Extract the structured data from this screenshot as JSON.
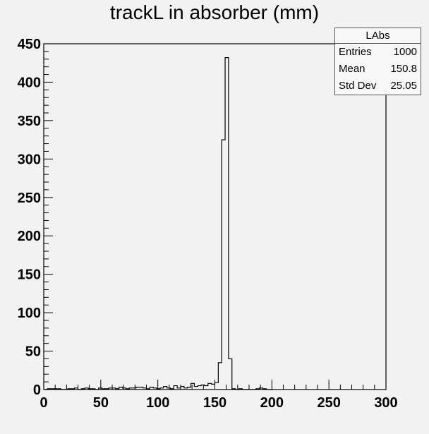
{
  "chart_data": {
    "type": "bar",
    "title": "trackL in absorber (mm)",
    "xlim": [
      0,
      300
    ],
    "ylim": [
      0,
      450
    ],
    "x_ticks": [
      "0",
      "50",
      "100",
      "150",
      "200",
      "250",
      "300"
    ],
    "y_ticks": [
      "0",
      "50",
      "100",
      "150",
      "200",
      "250",
      "300",
      "350",
      "400",
      "450"
    ],
    "bin_width": 3,
    "series": [
      {
        "name": "LAbs",
        "x": [
          0,
          3,
          6,
          9,
          12,
          15,
          18,
          21,
          24,
          27,
          30,
          33,
          36,
          39,
          42,
          45,
          48,
          51,
          54,
          57,
          60,
          63,
          66,
          69,
          72,
          75,
          78,
          81,
          84,
          87,
          90,
          93,
          96,
          99,
          102,
          105,
          108,
          111,
          114,
          117,
          120,
          123,
          126,
          129,
          132,
          135,
          138,
          141,
          144,
          147,
          150,
          153,
          156,
          159,
          162,
          165,
          168,
          171,
          174,
          177,
          180,
          183,
          186,
          189,
          192,
          195,
          198
        ],
        "values": [
          0,
          1,
          1,
          1,
          1,
          0,
          0,
          1,
          1,
          2,
          0,
          1,
          2,
          1,
          1,
          0,
          2,
          1,
          1,
          2,
          2,
          1,
          3,
          2,
          1,
          2,
          2,
          3,
          3,
          2,
          1,
          3,
          2,
          1,
          2,
          4,
          2,
          1,
          5,
          2,
          4,
          2,
          3,
          8,
          4,
          5,
          6,
          5,
          8,
          7,
          9,
          35,
          325,
          432,
          40,
          1,
          0,
          1,
          0,
          0,
          0,
          0,
          1,
          2,
          1,
          0,
          0
        ]
      }
    ],
    "stats": {
      "title": "LAbs",
      "rows": [
        {
          "label": "Entries",
          "value": "1000"
        },
        {
          "label": "Mean",
          "value": "150.8"
        },
        {
          "label": "Std Dev",
          "value": "25.05"
        }
      ]
    },
    "grid": false,
    "legend": "top-right"
  }
}
